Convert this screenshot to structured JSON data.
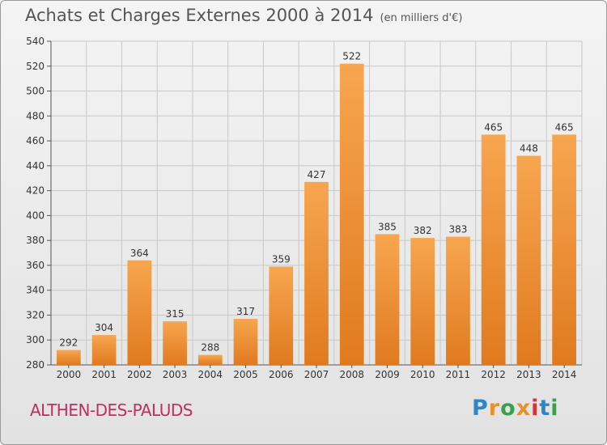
{
  "title": "Achats et Charges Externes 2000 à 2014",
  "subtitle": "(en milliers d'€)",
  "location": "ALTHEN-DES-PALUDS",
  "logo": {
    "letters": [
      "P",
      "r",
      "o",
      "x",
      "i",
      "t",
      "i"
    ],
    "colors": [
      "#2e86c8",
      "#e8912a",
      "#3aa14a",
      "#e8912a",
      "#d6343a",
      "#2e86c8",
      "#3aa14a"
    ]
  },
  "colors": {
    "bar_top": "#f7a650",
    "bar_bottom": "#e07a1f",
    "grid": "#c8c8c8"
  },
  "chart_data": {
    "type": "bar",
    "categories": [
      "2000",
      "2001",
      "2002",
      "2003",
      "2004",
      "2005",
      "2006",
      "2007",
      "2008",
      "2009",
      "2010",
      "2011",
      "2012",
      "2013",
      "2014"
    ],
    "values": [
      292,
      304,
      364,
      315,
      288,
      317,
      359,
      427,
      522,
      385,
      382,
      383,
      465,
      448,
      465
    ],
    "data_labels": [
      "292",
      "304",
      "364",
      "315",
      "288",
      "317",
      "359",
      "427",
      "522",
      "385",
      "382",
      "383",
      "465",
      "448",
      "465"
    ],
    "ylim": [
      280,
      540
    ],
    "yticks": [
      "280",
      "300",
      "320",
      "340",
      "360",
      "380",
      "400",
      "420",
      "440",
      "460",
      "480",
      "500",
      "520",
      "540"
    ],
    "grid": true,
    "xlabel": "",
    "ylabel": ""
  }
}
